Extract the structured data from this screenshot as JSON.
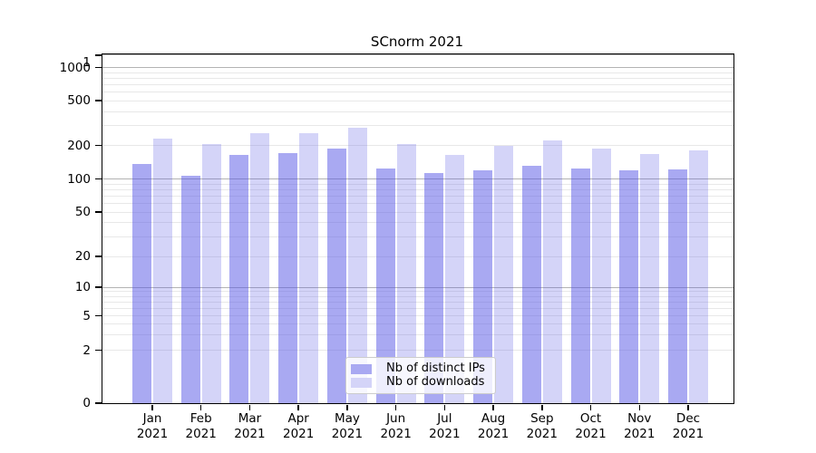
{
  "title": "SCnorm 2021",
  "chart_data": {
    "type": "bar",
    "title": "SCnorm 2021",
    "categories": [
      "Jan 2021",
      "Feb 2021",
      "Mar 2021",
      "Apr 2021",
      "May 2021",
      "Jun 2021",
      "Jul 2021",
      "Aug 2021",
      "Sep 2021",
      "Oct 2021",
      "Nov 2021",
      "Dec 2021"
    ],
    "series": [
      {
        "name": "Nb of distinct IPs",
        "color": "#a9a9f2",
        "fill": "rgba(83,83,229,0.5)",
        "values": [
          136,
          106,
          163,
          170,
          187,
          124,
          114,
          120,
          132,
          124,
          119,
          122
        ]
      },
      {
        "name": "Nb of downloads",
        "color": "#d4d4f8",
        "fill": "rgba(83,83,229,0.25)",
        "values": [
          230,
          206,
          257,
          257,
          287,
          206,
          163,
          198,
          222,
          187,
          166,
          181
        ]
      }
    ],
    "xlabel": "",
    "ylabel": "",
    "yscale": "symlog",
    "yticks": [
      0,
      1,
      2,
      5,
      10,
      20,
      50,
      100,
      200,
      500,
      1000
    ],
    "ylim": [
      0,
      1300
    ],
    "grid": true,
    "legend_position": "lower center"
  }
}
